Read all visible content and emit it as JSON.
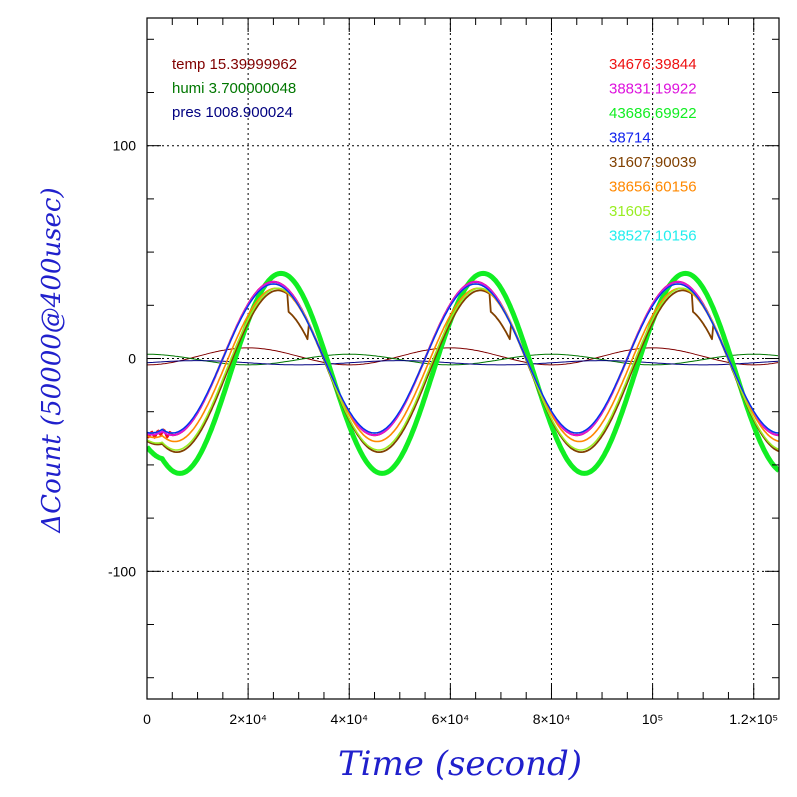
{
  "chart_data": {
    "type": "line",
    "xlabel": "Time (second)",
    "ylabel": "ΔCount (50000@400usec)",
    "xlim": [
      0,
      125000
    ],
    "ylim": [
      -160,
      160
    ],
    "grid": true,
    "x_ticks": [
      {
        "value": 0,
        "label": "0"
      },
      {
        "value": 20000,
        "label": "2×10⁴"
      },
      {
        "value": 40000,
        "label": "4×10⁴"
      },
      {
        "value": 60000,
        "label": "6×10⁴"
      },
      {
        "value": 80000,
        "label": "8×10⁴"
      },
      {
        "value": 100000,
        "label": "10⁵"
      },
      {
        "value": 120000,
        "label": "1.2×10⁵"
      }
    ],
    "y_ticks": [
      {
        "value": 100,
        "label": "100"
      },
      {
        "value": 0,
        "label": "0"
      },
      {
        "value": -100,
        "label": "-100"
      }
    ],
    "legend_left_placement": "top-left",
    "legend_right_placement": "top-right",
    "series": [
      {
        "name": "34676.39844",
        "color": "#ee1111",
        "amplitude": 36,
        "offset": 0,
        "width": 2.2,
        "start_dip": true
      },
      {
        "name": "38831.19922",
        "color": "#dd11dd",
        "amplitude": 36,
        "offset": 0,
        "width": 1.8
      },
      {
        "name": "43686.69922",
        "color": "#11ee22",
        "amplitude": 47,
        "offset": -7,
        "width": 5,
        "phase_shift": 1500
      },
      {
        "name": "38714",
        "color": "#1122ee",
        "amplitude": 35,
        "offset": 0,
        "width": 1.4
      },
      {
        "name": "31607.90039",
        "color": "#804000",
        "amplitude": 38,
        "offset": -6,
        "width": 1.8,
        "phase_shift": 900,
        "steps": true
      },
      {
        "name": "38656.60156",
        "color": "#ff8800",
        "amplitude": 36,
        "offset": -3,
        "width": 1.6,
        "phase_shift": 500
      },
      {
        "name": "31605",
        "color": "#99ee22",
        "amplitude": 38,
        "offset": -5,
        "width": 1.6,
        "phase_shift": 800
      },
      {
        "name": "38527.10156",
        "color": "#22eeee",
        "amplitude": 35,
        "offset": 0,
        "width": 1.6
      }
    ],
    "env_series": [
      {
        "name": "temp",
        "value": "15.39999962",
        "color": "#800000",
        "amplitude": 4,
        "offset": 1,
        "phase": 10000
      },
      {
        "name": "humi",
        "value": "3.700000048",
        "color": "#007700",
        "amplitude": 2.5,
        "offset": -0.5,
        "phase": 30000
      },
      {
        "name": "pres",
        "value": "1008.900024",
        "color": "#000080",
        "amplitude": 1,
        "offset": -2,
        "phase": 0
      }
    ],
    "period": 40000,
    "zero_crossing": 15000
  }
}
